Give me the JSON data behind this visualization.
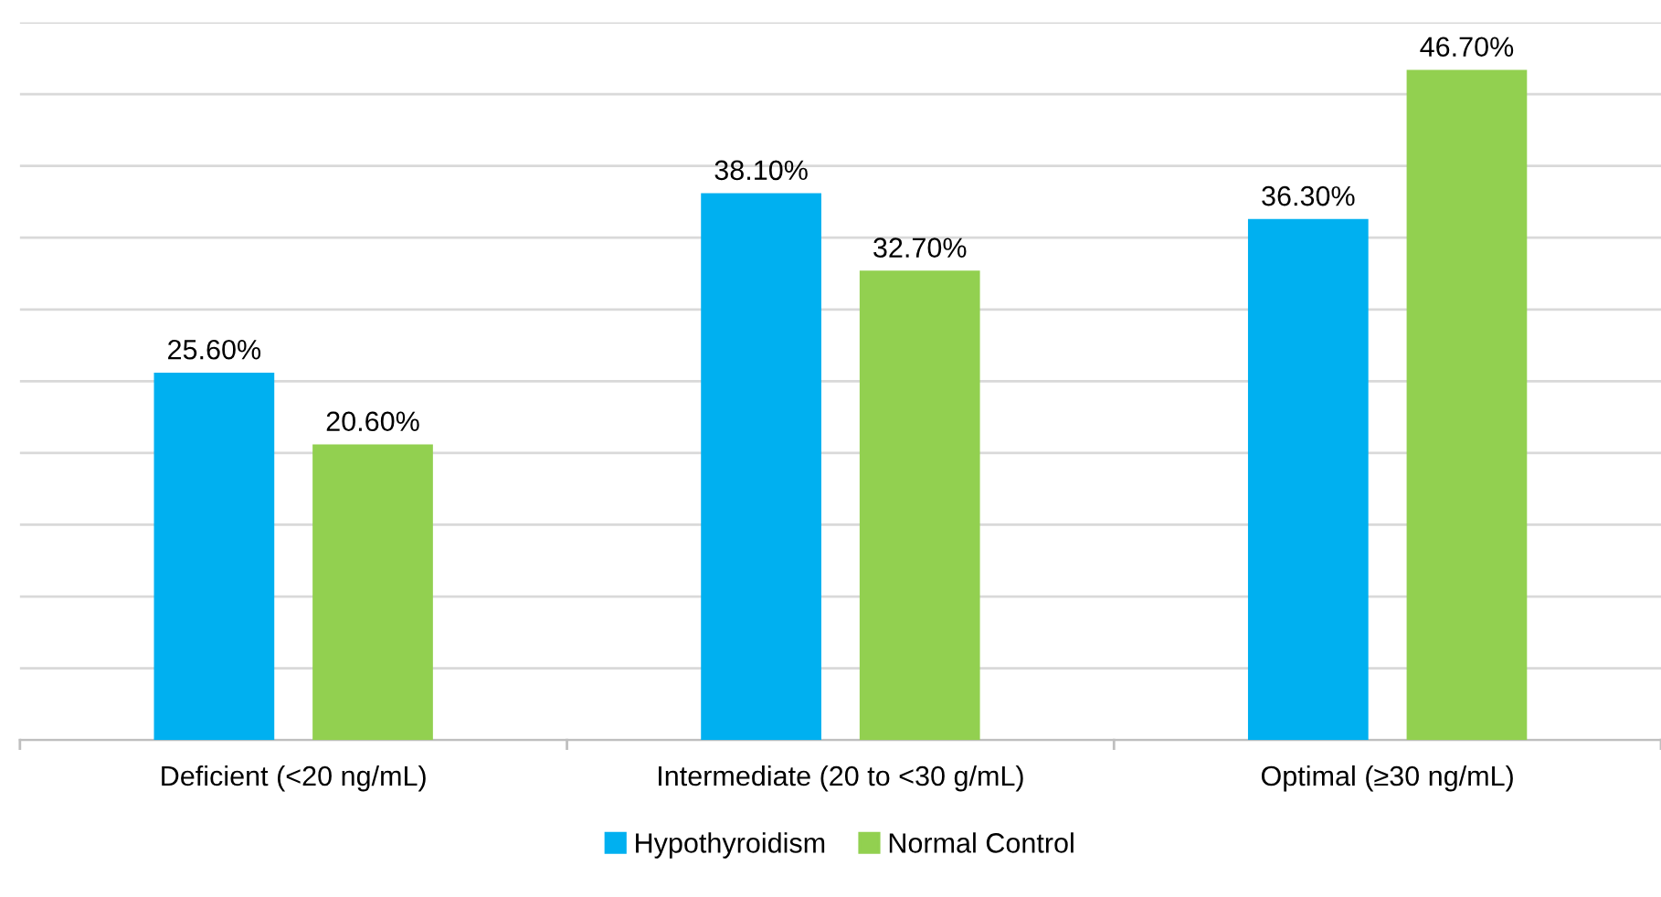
{
  "chart_data": {
    "type": "bar",
    "categories": [
      "Deficient (<20 ng/mL)",
      "Intermediate (20 to <30 g/mL)",
      "Optimal (≥30 ng/mL)"
    ],
    "series": [
      {
        "name": "Hypothyroidism",
        "color": "#00b0f0",
        "values": [
          25.6,
          38.1,
          36.3
        ],
        "value_labels": [
          "25.60%",
          "38.10%",
          "36.30%"
        ]
      },
      {
        "name": "Normal Control",
        "color": "#92d050",
        "values": [
          20.6,
          32.7,
          46.7
        ],
        "value_labels": [
          "20.60%",
          "32.70%",
          "46.70%"
        ]
      }
    ],
    "ylim": [
      0,
      50
    ],
    "yticks": [
      {
        "value": 0,
        "label": null
      },
      {
        "value": 5,
        "label": null
      },
      {
        "value": 10,
        "label": null
      },
      {
        "value": 15,
        "label": null
      },
      {
        "value": 20,
        "label": null
      },
      {
        "value": 25,
        "label": null
      },
      {
        "value": 30,
        "label": null
      },
      {
        "value": 35,
        "label": null
      },
      {
        "value": 40,
        "label": null
      },
      {
        "value": 45,
        "label": null
      },
      {
        "value": 50,
        "label": null
      }
    ],
    "grid": "y",
    "legend": "bottom",
    "tick_labels": "x"
  }
}
